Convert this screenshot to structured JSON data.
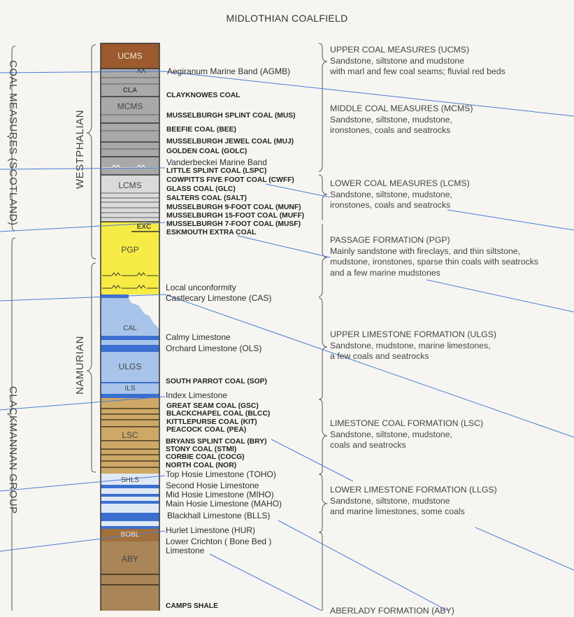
{
  "title": "MIDLOTHIAN COALFIELD",
  "group_labels": {
    "coal_measures": "COAL MEASURES (SCOTLAND)",
    "clackmannan": "CLACKMANNAN GROUP"
  },
  "stage_labels": {
    "westphalian": "WESTPHALIAN",
    "namurian": "NAMURIAN"
  },
  "unit_labels": {
    "ucms": "UCMS",
    "cla": "CLA",
    "mcms": "MCMS",
    "lcms": "LCMS",
    "exc": "EXC",
    "pgp": "PGP",
    "cal": "CAL",
    "ulgs": "ULGS",
    "ils": "ILS",
    "lsc": "LSC",
    "shls": "SHLS",
    "bobl": "BOBL",
    "aby": "ABY"
  },
  "layer_labels": [
    "Aegiranum Marine Band (AGMB)",
    "CLAYKNOWES COAL",
    "MUSSELBURGH SPLINT COAL (MUS)",
    "BEEFIE COAL (BEE)",
    "MUSSELBURGH JEWEL COAL (MUJ)",
    "GOLDEN COAL (GOLC)",
    "Vanderbeckei Marine Band",
    "LITTLE SPLINT COAL (LSPC)",
    "COWPITTS FIVE FOOT COAL (CWFF)",
    "GLASS COAL (GLC)",
    "SALTERS COAL (SALT)",
    "MUSSELBURGH 9-FOOT COAL (MUNF)",
    "MUSSELBURGH 15-FOOT COAL (MUFF)",
    "MUSSELBURGH 7-FOOT COAL (MUSF)",
    "ESKMOUTH EXTRA COAL",
    "Local unconformity",
    "Castlecary Limestone (CAS)",
    "Calmy Limestone",
    "Orchard Limestone (OLS)",
    "SOUTH PARROT COAL (SOP)",
    "Index Limestone",
    "GREAT SEAM COAL (GSC)",
    "BLACKCHAPEL COAL (BLCC)",
    "KITTLEPURSE COAL (KIT)",
    "PEACOCK COAL (PEA)",
    "BRYANS SPLINT COAL (BRY)",
    "STONY COAL (STMI)",
    "CORBIE COAL (COCG)",
    "NORTH COAL (NOR)",
    "Top Hosie Limestone (TOHO)",
    "Second Hosie Limestone",
    "Mid Hosie Limestone (MIHO)",
    "Main Hosie Limestone (MAHO)",
    "Blackhall Limestone (BLLS)",
    "Hurlet Limestone (HUR)",
    "Lower Crichton ( Bone Bed )",
    "Limestone",
    "CAMPS SHALE"
  ],
  "formations": [
    {
      "name": "UPPER COAL MEASURES (UCMS)",
      "lines": [
        "Sandstone, siltstone and mudstone",
        "with marl and few coal seams; fluvial red beds"
      ]
    },
    {
      "name": "MIDDLE COAL MEASURES (MCMS)",
      "lines": [
        "Sandstone, siltstone, mudstone,",
        "ironstones, coals and seatrocks"
      ]
    },
    {
      "name": "LOWER COAL MEASURES (LCMS)",
      "lines": [
        "Sandstone, siltstone, mudstone,",
        "ironstones, coals and seatrocks"
      ]
    },
    {
      "name": "PASSAGE FORMATION (PGP)",
      "lines": [
        "Mainly sandstone with fireclays, and thin siltstone,",
        "mudstone, ironstones, sparse thin coals with seatrocks",
        "and a few marine mudstones"
      ]
    },
    {
      "name": "UPPER LIMESTONE FORMATION (ULGS)",
      "lines": [
        "Sandstone, mudstone, marine limestones,",
        "a few coals and seatrocks"
      ]
    },
    {
      "name": "LIMESTONE COAL FORMATION (LSC)",
      "lines": [
        "Sandstone, siltstone, mudstone,",
        "coals and seatrocks"
      ]
    },
    {
      "name": "LOWER LIMESTONE FORMATION (LLGS)",
      "lines": [
        "Sandstone, siltstone, mudstone",
        "and marine limestones, some coals"
      ]
    },
    {
      "name": "ABERLADY FORMATION (ABY)",
      "lines": []
    }
  ],
  "colors": {
    "ucms": "#9c5a2e",
    "coal_measures_grey": "#a9a9a9",
    "lcms_light": "#dadada",
    "pgp_yellow": "#f7ec45",
    "limestone_blue": "#a9c4ea",
    "limestone_band": "#3a6fd0",
    "lsc_tan": "#cda867",
    "aby_brown": "#a98558",
    "leader_line": "#4a7ad6"
  }
}
